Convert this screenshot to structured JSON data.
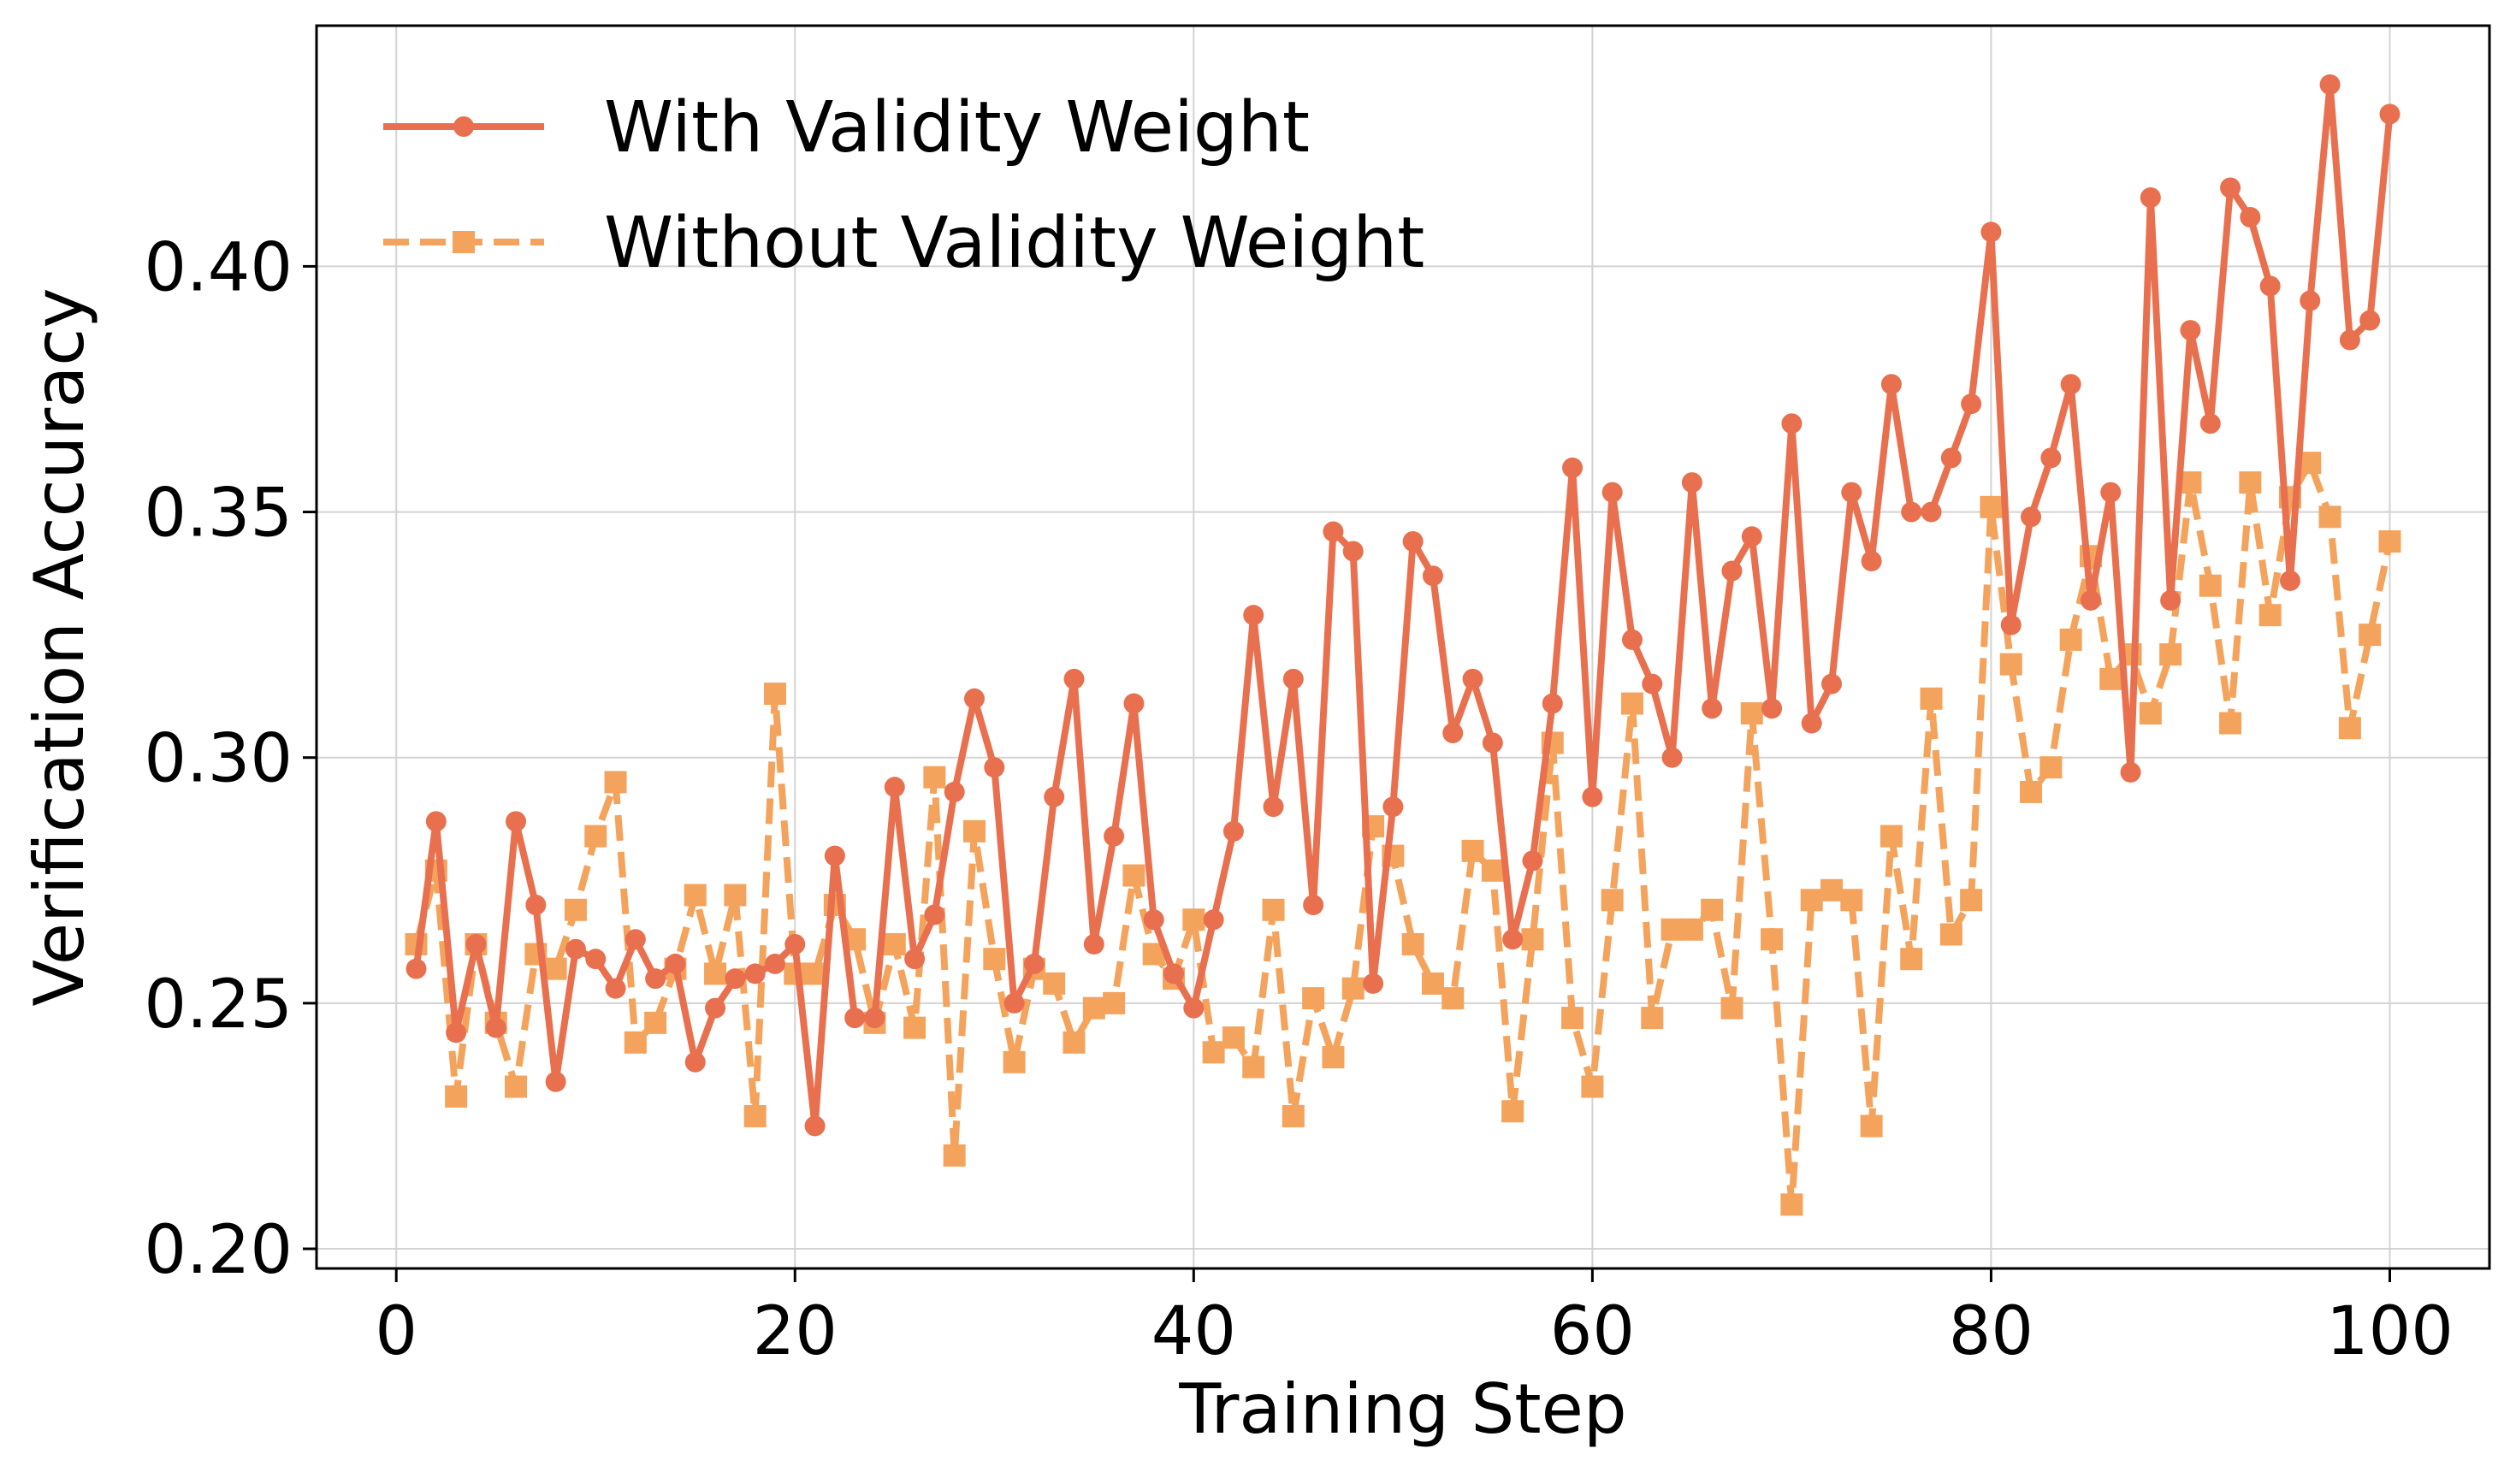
{
  "chart_data": {
    "type": "line",
    "title": "",
    "xlabel": "Training Step",
    "ylabel": "Verification Accuracy",
    "xlim": [
      -4,
      105
    ],
    "ylim": [
      0.196,
      0.449
    ],
    "xticks": [
      0,
      20,
      40,
      60,
      80,
      100
    ],
    "xtick_labels": [
      "0",
      "20",
      "40",
      "60",
      "80",
      "100"
    ],
    "yticks": [
      0.2,
      0.25,
      0.3,
      0.35,
      0.4
    ],
    "ytick_labels": [
      "0.20",
      "0.25",
      "0.30",
      "0.35",
      "0.40"
    ],
    "grid": true,
    "legend_position": "top-left",
    "x": [
      1,
      2,
      3,
      4,
      5,
      6,
      7,
      8,
      9,
      10,
      11,
      12,
      13,
      14,
      15,
      16,
      17,
      18,
      19,
      20,
      21,
      22,
      23,
      24,
      25,
      26,
      27,
      28,
      29,
      30,
      31,
      32,
      33,
      34,
      35,
      36,
      37,
      38,
      39,
      40,
      41,
      42,
      43,
      44,
      45,
      46,
      47,
      48,
      49,
      50,
      51,
      52,
      53,
      54,
      55,
      56,
      57,
      58,
      59,
      60,
      61,
      62,
      63,
      64,
      65,
      66,
      67,
      68,
      69,
      70,
      71,
      72,
      73,
      74,
      75,
      76,
      77,
      78,
      79,
      80,
      81,
      82,
      83,
      84,
      85,
      86,
      87,
      88,
      89,
      90,
      91,
      92,
      93,
      94,
      95,
      96,
      97,
      98,
      99,
      100
    ],
    "series": [
      {
        "name": "With Validity Weight",
        "color": "#e8704e",
        "line_style": "solid",
        "marker": "circle",
        "values": [
          0.257,
          0.287,
          0.244,
          0.262,
          0.245,
          0.287,
          0.27,
          0.234,
          0.261,
          0.259,
          0.253,
          0.263,
          0.255,
          0.258,
          0.238,
          0.249,
          0.255,
          0.256,
          0.258,
          0.262,
          0.225,
          0.28,
          0.247,
          0.247,
          0.294,
          0.259,
          0.268,
          0.293,
          0.312,
          0.298,
          0.25,
          0.258,
          0.292,
          0.316,
          0.262,
          0.284,
          0.311,
          0.267,
          0.256,
          0.249,
          0.267,
          0.285,
          0.329,
          0.29,
          0.316,
          0.27,
          0.346,
          0.342,
          0.254,
          0.29,
          0.344,
          0.337,
          0.305,
          0.316,
          0.303,
          0.263,
          0.279,
          0.311,
          0.359,
          0.292,
          0.354,
          0.324,
          0.315,
          0.3,
          0.356,
          0.31,
          0.338,
          0.345,
          0.31,
          0.368,
          0.307,
          0.315,
          0.354,
          0.34,
          0.376,
          0.35,
          0.35,
          0.361,
          0.372,
          0.407,
          0.327,
          0.349,
          0.361,
          0.376,
          0.332,
          0.354,
          0.297,
          0.414,
          0.332,
          0.387,
          0.368,
          0.416,
          0.41,
          0.396,
          0.336,
          0.393,
          0.437,
          0.385,
          0.389,
          0.431
        ]
      },
      {
        "name": "Without Validity Weight",
        "color": "#f4a35c",
        "line_style": "dashed",
        "marker": "square",
        "values": [
          0.262,
          0.277,
          0.231,
          0.262,
          0.246,
          0.233,
          0.26,
          0.257,
          0.269,
          0.284,
          0.295,
          0.242,
          0.246,
          0.257,
          0.272,
          0.256,
          0.272,
          0.227,
          0.313,
          0.256,
          0.256,
          0.27,
          0.263,
          0.246,
          0.262,
          0.245,
          0.296,
          0.219,
          0.285,
          0.259,
          0.238,
          0.257,
          0.254,
          0.242,
          0.249,
          0.25,
          0.276,
          0.26,
          0.255,
          0.267,
          0.24,
          0.243,
          0.237,
          0.269,
          0.227,
          0.251,
          0.239,
          0.253,
          0.286,
          0.28,
          0.262,
          0.254,
          0.251,
          0.281,
          0.277,
          0.228,
          0.263,
          0.303,
          0.247,
          0.233,
          0.271,
          0.311,
          0.247,
          0.265,
          0.265,
          0.269,
          0.249,
          0.309,
          0.263,
          0.209,
          0.271,
          0.273,
          0.271,
          0.225,
          0.284,
          0.259,
          0.312,
          0.264,
          0.271,
          0.351,
          0.319,
          0.293,
          0.298,
          0.324,
          0.341,
          0.316,
          0.321,
          0.309,
          0.321,
          0.356,
          0.335,
          0.307,
          0.356,
          0.329,
          0.353,
          0.36,
          0.349,
          0.306,
          0.325,
          0.344
        ]
      }
    ]
  }
}
